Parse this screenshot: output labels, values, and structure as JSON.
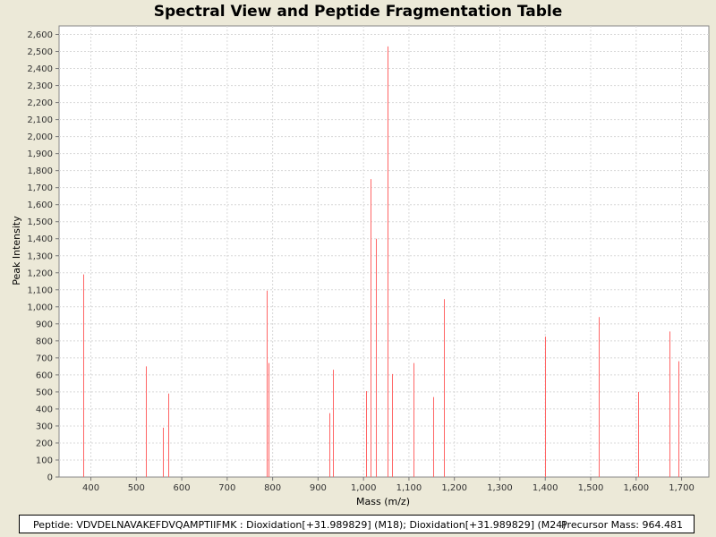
{
  "chart_data": {
    "type": "bar",
    "title": "Spectral View and Peptide Fragmentation Table",
    "xlabel": "Mass (m/z)",
    "ylabel": "Peak Intensity",
    "xlim": [
      330,
      1760
    ],
    "ylim": [
      0,
      2650
    ],
    "grid": true,
    "x_ticks": [
      400,
      500,
      600,
      700,
      800,
      900,
      1000,
      1100,
      1200,
      1300,
      1400,
      1500,
      1600,
      1700
    ],
    "x_tick_labels": [
      "400",
      "500",
      "600",
      "700",
      "800",
      "900",
      "1,000",
      "1,100",
      "1,200",
      "1,300",
      "1,400",
      "1,500",
      "1,600",
      "1,700"
    ],
    "y_ticks": [
      0,
      100,
      200,
      300,
      400,
      500,
      600,
      700,
      800,
      900,
      1000,
      1100,
      1200,
      1300,
      1400,
      1500,
      1600,
      1700,
      1800,
      1900,
      2000,
      2100,
      2200,
      2300,
      2400,
      2500,
      2600
    ],
    "y_tick_labels": [
      "0",
      "100",
      "200",
      "300",
      "400",
      "500",
      "600",
      "700",
      "800",
      "900",
      "1,000",
      "1,100",
      "1,200",
      "1,300",
      "1,400",
      "1,500",
      "1,600",
      "1,700",
      "1,800",
      "1,900",
      "2,000",
      "2,100",
      "2,200",
      "2,300",
      "2,400",
      "2,500",
      "2,600"
    ],
    "peak_color": "#FF6666",
    "peaks": [
      {
        "x": 384,
        "y": 1190
      },
      {
        "x": 522,
        "y": 650
      },
      {
        "x": 559,
        "y": 290
      },
      {
        "x": 570,
        "y": 490
      },
      {
        "x": 786,
        "y": 1095
      },
      {
        "x": 791,
        "y": 670
      },
      {
        "x": 924,
        "y": 375
      },
      {
        "x": 933,
        "y": 630
      },
      {
        "x": 1006,
        "y": 505
      },
      {
        "x": 1016,
        "y": 1750
      },
      {
        "x": 1027,
        "y": 1400
      },
      {
        "x": 1053,
        "y": 2530
      },
      {
        "x": 1063,
        "y": 605
      },
      {
        "x": 1110,
        "y": 670
      },
      {
        "x": 1153,
        "y": 470
      },
      {
        "x": 1176,
        "y": 1045
      },
      {
        "x": 1399,
        "y": 825
      },
      {
        "x": 1518,
        "y": 940
      },
      {
        "x": 1605,
        "y": 500
      },
      {
        "x": 1674,
        "y": 855
      },
      {
        "x": 1694,
        "y": 680
      }
    ]
  },
  "footer": {
    "peptide": "Peptide: VDVDELNAVAKEFDVQAMPTIIFMK : Dioxidation[+31.989829] (M18); Dioxidation[+31.989829] (M24)",
    "precursor": "Precursor Mass: 964.481"
  }
}
